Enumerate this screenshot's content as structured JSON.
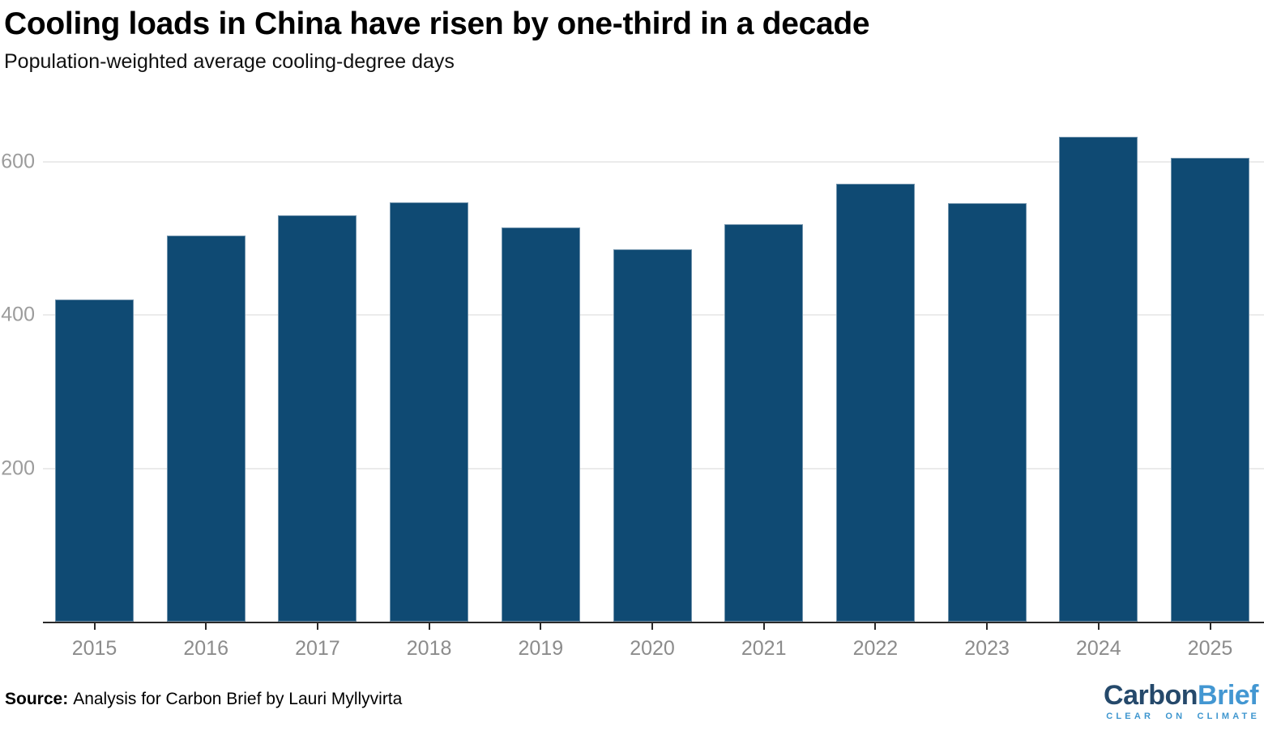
{
  "header": {
    "title": "Cooling loads in China have risen by one-third in a decade",
    "subtitle": "Population-weighted average cooling-degree days"
  },
  "chart_data": {
    "type": "bar",
    "title": "Cooling loads in China have risen by one-third in a decade",
    "subtitle": "Population-weighted average cooling-degree days",
    "categories": [
      "2015",
      "2016",
      "2017",
      "2018",
      "2019",
      "2020",
      "2021",
      "2022",
      "2023",
      "2024",
      "2025"
    ],
    "values": [
      420,
      504,
      530,
      547,
      514,
      486,
      518,
      571,
      546,
      632,
      605
    ],
    "xlabel": "",
    "ylabel": "Population-weighted average cooling-degree days",
    "ylim": [
      0,
      663
    ],
    "yticks": [
      200,
      400,
      600
    ],
    "grid": "horizontal-only",
    "legend": "none",
    "bar_color": "#0f4a73",
    "gridline_color": "#ebebeb",
    "axis_line_color": "#2a2a2a",
    "tick_label_color": "#8c8c8c",
    "ytick_label_color": "#9c9c9c"
  },
  "footer": {
    "source_label": "Source:",
    "source_text": "Analysis for Carbon Brief by Lauri Myllyvirta",
    "logo": {
      "part1": "Carbon",
      "part2": "Brief",
      "tagline": "CLEAR ON CLIMATE",
      "part1_color": "#25496b",
      "part2_color": "#4397d2",
      "tagline_color": "#3e96cf"
    }
  }
}
